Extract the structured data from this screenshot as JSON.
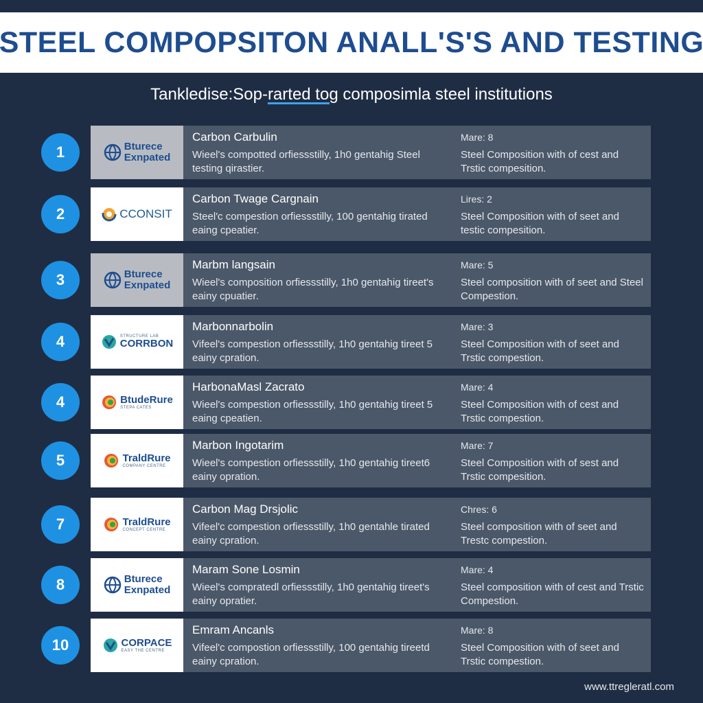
{
  "title": "STEEL COMPOPSITON ANALL'S'S AND TESTING",
  "subtitle": {
    "part1": "Tankledise:Sop-",
    "part2": "rarted tog",
    "part3": " composimla steel institutions"
  },
  "rows": [
    {
      "number": "1",
      "logo": {
        "kind": "globe",
        "main1": "Bturece",
        "main2": "Exnpated",
        "sub": ""
      },
      "title": "Carbon Carbulin",
      "desc": "Wieel's compotted orfiessstilly, 1h0 gentahig Steel testing qirastier.",
      "count": "Mare: 8",
      "right": "Steel Composition with of cest and Trstic compesition."
    },
    {
      "number": "2",
      "logo": {
        "kind": "swirl",
        "main1": "CCONSIT",
        "main2": "",
        "sub": ""
      },
      "title": "Carbon Twage Cargnain",
      "desc": "Steel'c compestion orfiessstilly, 100 gentahig tirated eaing cpeatier.",
      "count": "Lires: 2",
      "right": "Steel Composition with of seet and testic compesition."
    },
    {
      "number": "3",
      "logo": {
        "kind": "globe",
        "main1": "Bturece",
        "main2": "Exnpated",
        "sub": ""
      },
      "title": "Marbm langsain",
      "desc": "Wieel's composition orfiessstilly, 1h0 gentahig tireet's eainy cpuatier.",
      "count": "Mare: 5",
      "right": "Steel composition with of seet and Steel Compestion."
    },
    {
      "number": "4",
      "logo": {
        "kind": "leaf",
        "main1": "CORRBON",
        "main2": "",
        "sub": "STRUCTURE LAB"
      },
      "title": "Marbonnarbolin",
      "desc": "Vifeel's compestion orfiessstilly, 1h0 gentahig tireet 5 eainy cpration.",
      "count": "Mare: 3",
      "right": "Steel Composition with of seet and Trstic compestion."
    },
    {
      "number": "4",
      "logo": {
        "kind": "rings",
        "main1": "BtudeRure",
        "main2": "",
        "sub": "STEPA CATES"
      },
      "title": "HarbonaMasl Zacrato",
      "desc": "Wieel's compestion orfiessstilly, 1h0 gentahig tireet 5 eaing cpeatien.",
      "count": "Mare: 4",
      "right": "Steel Composition with of cest and Trstic compestion."
    },
    {
      "number": "5",
      "logo": {
        "kind": "rings",
        "main1": "TraldRure",
        "main2": "",
        "sub": "COMPANY CENTRE"
      },
      "title": "Marbon Ingotarim",
      "desc": "Wieel's compestion orfiessstilly, 1h0 gentahig tireet6 eainy opration.",
      "count": "Mare: 7",
      "right": "Steel Composition with of sest and Trstic compesition."
    },
    {
      "number": "7",
      "logo": {
        "kind": "rings",
        "main1": "TraldRure",
        "main2": "",
        "sub": "CONCEPT CENTRE"
      },
      "title": "Carbon Mag Drsjolic",
      "desc": "Vifeel'c compestion orfiessstilly, 1h0 gentahle tirated eainy cpration.",
      "count": "Chres: 6",
      "right": "Steel composition with of seet and Trestc compestion."
    },
    {
      "number": "8",
      "logo": {
        "kind": "globe",
        "main1": "Bturece",
        "main2": "Exnpated",
        "sub": ""
      },
      "title": "Maram Sone Losmin",
      "desc": "Wieel's compratedl orfiessstilly, 1h0 gentahig tireet's eainy opratier.",
      "count": "Mare: 4",
      "right": "Steel composition with of cest and Trstic Compestion."
    },
    {
      "number": "10",
      "logo": {
        "kind": "leaf",
        "main1": "CORPACE",
        "main2": "",
        "sub": "EASY THE CENTRE"
      },
      "title": "Emram Ancanls",
      "desc": "Vifeel'c compostion orfiessstilly, 100 gentahig tireetd eainy cpration.",
      "count": "Mare: 8",
      "right": "Steel Composition with of seet and Trstic compestion."
    }
  ],
  "footer": "www.ttregleratl.com",
  "colors": {
    "background": "#1f2d44",
    "title": "#1e4d8f",
    "badge": "#1f91e3",
    "panel": "#4b5869"
  }
}
